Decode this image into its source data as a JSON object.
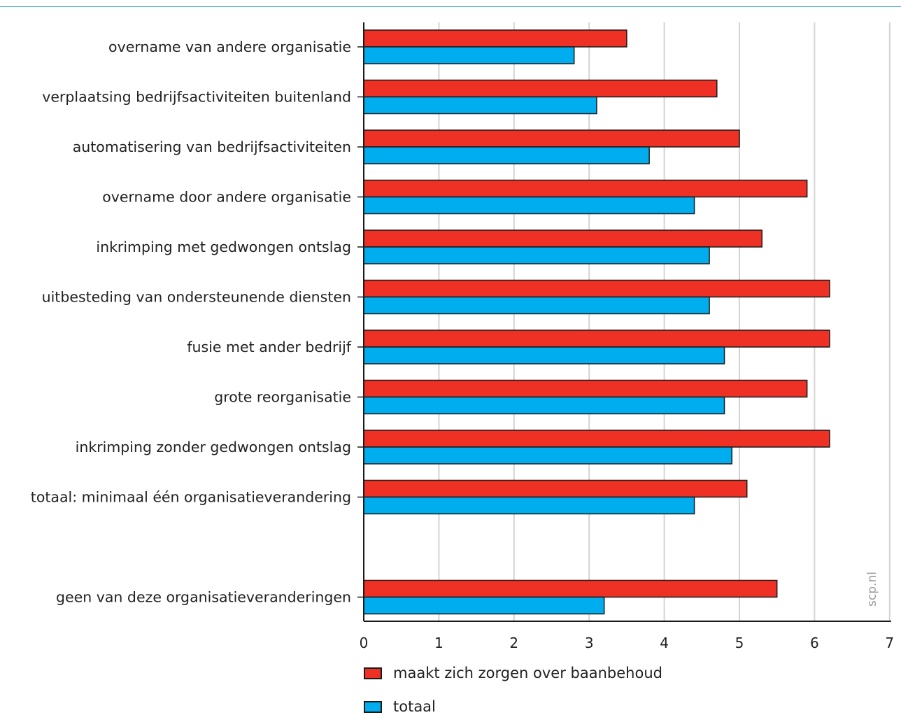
{
  "chart_data": {
    "type": "bar",
    "orientation": "horizontal",
    "title": "",
    "xlabel": "",
    "ylabel": "",
    "xlim": [
      0,
      7
    ],
    "x_ticks": [
      "0",
      "1",
      "2",
      "3",
      "4",
      "5",
      "6",
      "7"
    ],
    "grid": true,
    "legend_position": "bottom",
    "categories": [
      "overname van andere organisatie",
      "verplaatsing bedrijfsactiviteiten buitenland",
      "automatisering van bedrijfsactiviteiten",
      "overname door andere organisatie",
      "inkrimping met gedwongen ontslag",
      "uitbesteding van ondersteunende diensten",
      "fusie met ander bedrijf",
      "grote reorganisatie",
      "inkrimping zonder gedwongen ontslag",
      "totaal: minimaal één organisatieverandering",
      "",
      "geen van deze organisatieveranderingen"
    ],
    "series": [
      {
        "name": "maakt zich zorgen over baanbehoud",
        "color": "#ee3124",
        "values": [
          3.5,
          4.7,
          5.0,
          5.9,
          5.3,
          6.2,
          6.2,
          5.9,
          6.2,
          5.1,
          null,
          5.5
        ]
      },
      {
        "name": "totaal",
        "color": "#00aeef",
        "values": [
          2.8,
          3.1,
          3.8,
          4.4,
          4.6,
          4.6,
          4.8,
          4.8,
          4.9,
          4.4,
          null,
          3.2
        ]
      }
    ]
  },
  "watermark": "scp.nl"
}
